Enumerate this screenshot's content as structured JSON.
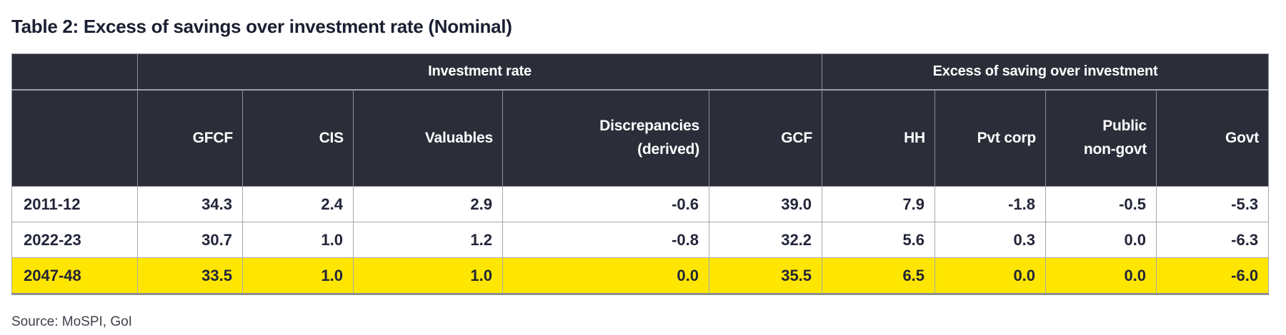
{
  "page": {
    "title": "Table 2: Excess of savings over investment rate (Nominal)",
    "source": "Source: MoSPI, GoI"
  },
  "colors": {
    "header_bg": "#2b2e39",
    "header_text": "#ffffff",
    "highlight_yellow": "#ffe600",
    "title_text": "#1b1f31",
    "data_text": "#222538",
    "grid_light": "#a7aaaf",
    "grid_dark": "#8e9197"
  },
  "table": {
    "group_headers": [
      {
        "label": "",
        "span": 1
      },
      {
        "label": "Investment rate",
        "span": 5
      },
      {
        "label": "Excess of saving over investment",
        "span": 4
      }
    ],
    "column_headers": [
      "",
      "GFCF",
      "CIS",
      "Valuables",
      "Discrepancies\n(derived)",
      "GCF",
      "HH",
      "Pvt corp",
      "Public\nnon-govt",
      "Govt"
    ],
    "rows": [
      {
        "label": "2011-12",
        "highlight": false,
        "values": [
          "34.3",
          "2.4",
          "2.9",
          "-0.6",
          "39.0",
          "7.9",
          "-1.8",
          "-0.5",
          "-5.3"
        ]
      },
      {
        "label": "2022-23",
        "highlight": false,
        "values": [
          "30.7",
          "1.0",
          "1.2",
          "-0.8",
          "32.2",
          "5.6",
          "0.3",
          "0.0",
          "-6.3"
        ]
      },
      {
        "label": "2047-48",
        "highlight": true,
        "values": [
          "33.5",
          "1.0",
          "1.0",
          "0.0",
          "35.5",
          "6.5",
          "0.0",
          "0.0",
          "-6.0"
        ]
      }
    ]
  }
}
